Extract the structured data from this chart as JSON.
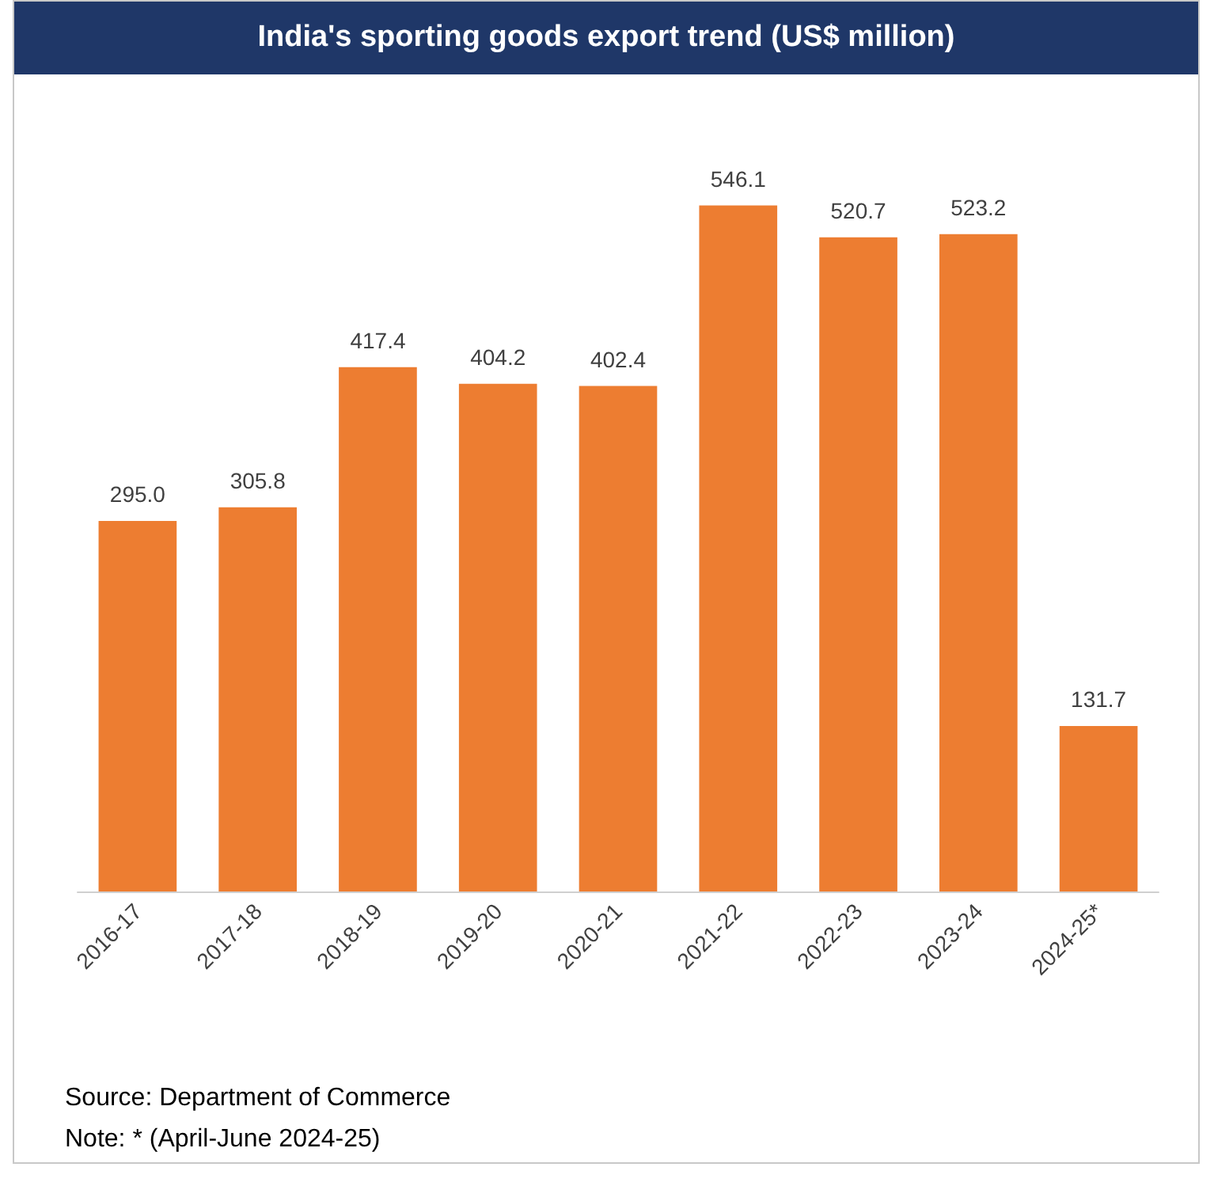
{
  "chart_data": {
    "type": "bar",
    "title": "India's sporting goods export trend (US$ million)",
    "categories": [
      "2016-17",
      "2017-18",
      "2018-19",
      "2019-20",
      "2020-21",
      "2021-22",
      "2022-23",
      "2023-24",
      "2024-25*"
    ],
    "values": [
      295.0,
      305.8,
      417.4,
      404.2,
      402.4,
      546.1,
      520.7,
      523.2,
      131.7
    ],
    "value_labels": [
      "295.0",
      "305.8",
      "417.4",
      "404.2",
      "402.4",
      "546.1",
      "520.7",
      "523.2",
      "131.7"
    ],
    "color": "#ed7d31",
    "annotations": [
      "Source: Department of Commerce",
      "Note: * (April-June 2024-25)"
    ],
    "grid": false
  }
}
